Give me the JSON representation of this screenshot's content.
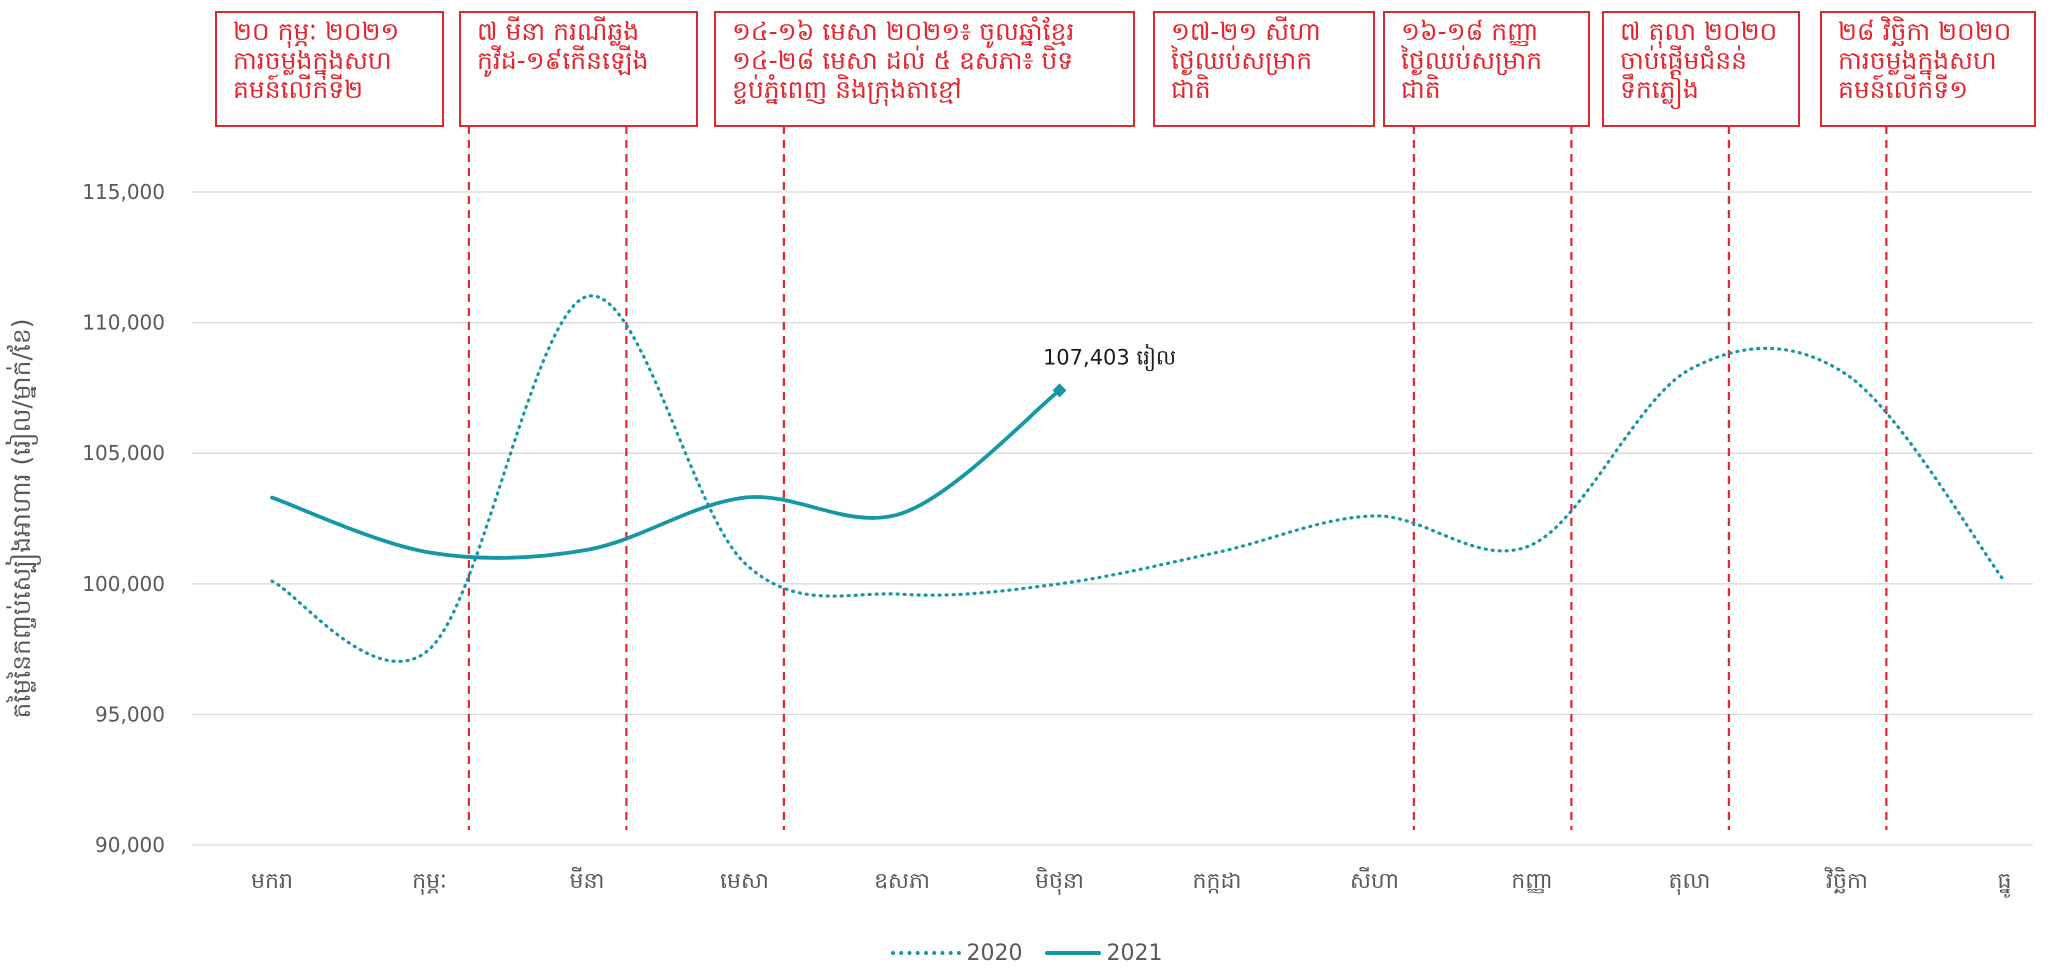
{
  "chart_data": {
    "type": "line",
    "title": "",
    "xlabel": "",
    "ylabel": "តម្លៃនៃកញ្ចប់ស្បៀងអាហារ (រៀល/ម្នាក់/ខែ)",
    "categories": [
      "មករា",
      "កុម្ភៈ",
      "មីនា",
      "មេសា",
      "ឧសភា",
      "មិថុនា",
      "កក្កដា",
      "សីហា",
      "កញ្ញា",
      "តុលា",
      "វិច្ឆិកា",
      "ធ្នូ"
    ],
    "ylim": [
      90000,
      115000
    ],
    "yticks": [
      90000,
      95000,
      100000,
      105000,
      110000,
      115000
    ],
    "ytick_labels": [
      "90,000",
      "95,000",
      "100,000",
      "105,000",
      "110,000",
      "115,000"
    ],
    "grid": true,
    "legend_position": "bottom",
    "series": [
      {
        "name": "2020",
        "style": "dotted",
        "color": "#1597a5",
        "values": [
          100100,
          97500,
          111000,
          100800,
          99600,
          100000,
          101200,
          102600,
          101500,
          108200,
          108000,
          100100
        ]
      },
      {
        "name": "2021",
        "style": "solid",
        "color": "#1597a5",
        "values": [
          103300,
          101200,
          101300,
          103300,
          102700,
          107403,
          null,
          null,
          null,
          null,
          null,
          null
        ]
      }
    ],
    "data_label": {
      "series": "2021",
      "category": "មិថុនា",
      "text": "107,403 រៀល"
    },
    "event_lines": [
      {
        "x": 1.0,
        "label": "២០ កុម្ភៈ ២០២១ ការចម្លងក្នុងសហគមន៍លើកទី២"
      },
      {
        "x": 2.0,
        "label": "៧ មីនា ករណីឆ្លងកូវីដ-១៩កើនឡើង"
      },
      {
        "x": 3.0,
        "label": "១៤-១៦ មេសា ២០២១៖ ចូលឆ្នាំខ្មែរ ១៤-២៨ មេសា ដល់ ៥ ឧសភា៖ បិទខ្ទប់ភ្នំពេញ និងក្រុងតាខ្មៅ"
      },
      {
        "x": 7.0,
        "label": "១៧-២១ សីហា ថ្ងៃឈប់សម្រាកជាតិ"
      },
      {
        "x": 8.0,
        "label": "១៦-១៨ កញ្ញា ថ្ងៃឈប់សម្រាកជាតិ"
      },
      {
        "x": 9.0,
        "label": "៧ តុលា ២០២០ ចាប់ផ្ដើមជំនន់ទឹកភ្លៀង"
      },
      {
        "x": 10.0,
        "label": "២៨ វិច្ឆិកា ២០២០ ការចម្លងក្នុងសហគមន៍លើកទី១"
      }
    ],
    "annotation_boxes": [
      {
        "lines": [
          "២០ កុម្ភៈ ២០២១",
          "ការចម្លងក្នុងសហ",
          "គមន៍លើកទី២"
        ]
      },
      {
        "lines": [
          "៧ មីនា ករណីឆ្លង",
          "កូវីដ-១៩កើនឡើង"
        ]
      },
      {
        "lines": [
          "១៤-១៦ មេសា ២០២១៖ ចូលឆ្នាំខ្មែរ",
          "១៤-២៨ មេសា ដល់ ៥ ឧសភា៖ បិទ",
          "ខ្ទប់ភ្នំពេញ និងក្រុងតាខ្មៅ"
        ]
      },
      {
        "lines": [
          "១៧-២១ សីហា",
          "ថ្ងៃឈប់សម្រាក",
          "ជាតិ"
        ]
      },
      {
        "lines": [
          "១៦-១៨ កញ្ញា",
          "ថ្ងៃឈប់សម្រាក",
          "ជាតិ"
        ]
      },
      {
        "lines": [
          "៧ តុលា ២០២០",
          "ចាប់ផ្ដើមជំនន់",
          "ទឹកភ្លៀង"
        ]
      },
      {
        "lines": [
          "២៨ វិច្ឆិកា ២០២០",
          "ការចម្លងក្នុងសហ",
          "គមន៍លើកទី១"
        ]
      }
    ]
  }
}
